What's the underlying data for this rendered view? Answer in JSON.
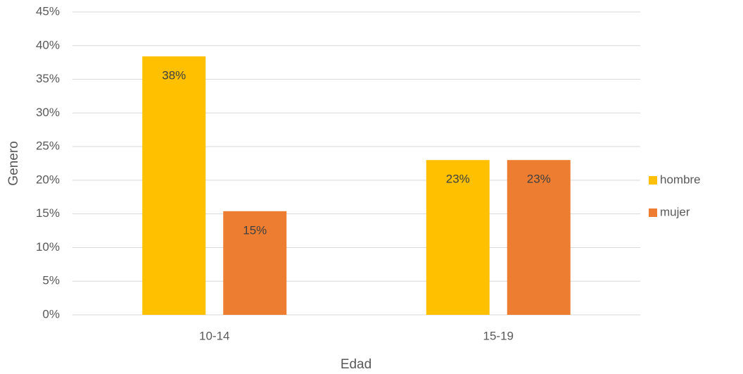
{
  "chart_data": {
    "type": "bar",
    "categories": [
      "10-14",
      "15-19"
    ],
    "series": [
      {
        "name": "hombre",
        "color": "#FFC000",
        "values": [
          38.4,
          23
        ],
        "value_labels": [
          "38%",
          "23%"
        ]
      },
      {
        "name": "mujer",
        "color": "#ED7D31",
        "values": [
          15.4,
          23
        ],
        "value_labels": [
          "15%",
          "23%"
        ]
      }
    ],
    "xlabel": "Edad",
    "ylabel": "Genero",
    "ylim": [
      0,
      45
    ],
    "yticks": [
      {
        "value": 0,
        "label": "0%"
      },
      {
        "value": 5,
        "label": "5%"
      },
      {
        "value": 10,
        "label": "10%"
      },
      {
        "value": 15,
        "label": "15%"
      },
      {
        "value": 20,
        "label": "20%"
      },
      {
        "value": 25,
        "label": "25%"
      },
      {
        "value": 30,
        "label": "30%"
      },
      {
        "value": 35,
        "label": "35%"
      },
      {
        "value": 40,
        "label": "40%"
      },
      {
        "value": 45,
        "label": "45%"
      }
    ],
    "grid": true,
    "legend": "right"
  }
}
